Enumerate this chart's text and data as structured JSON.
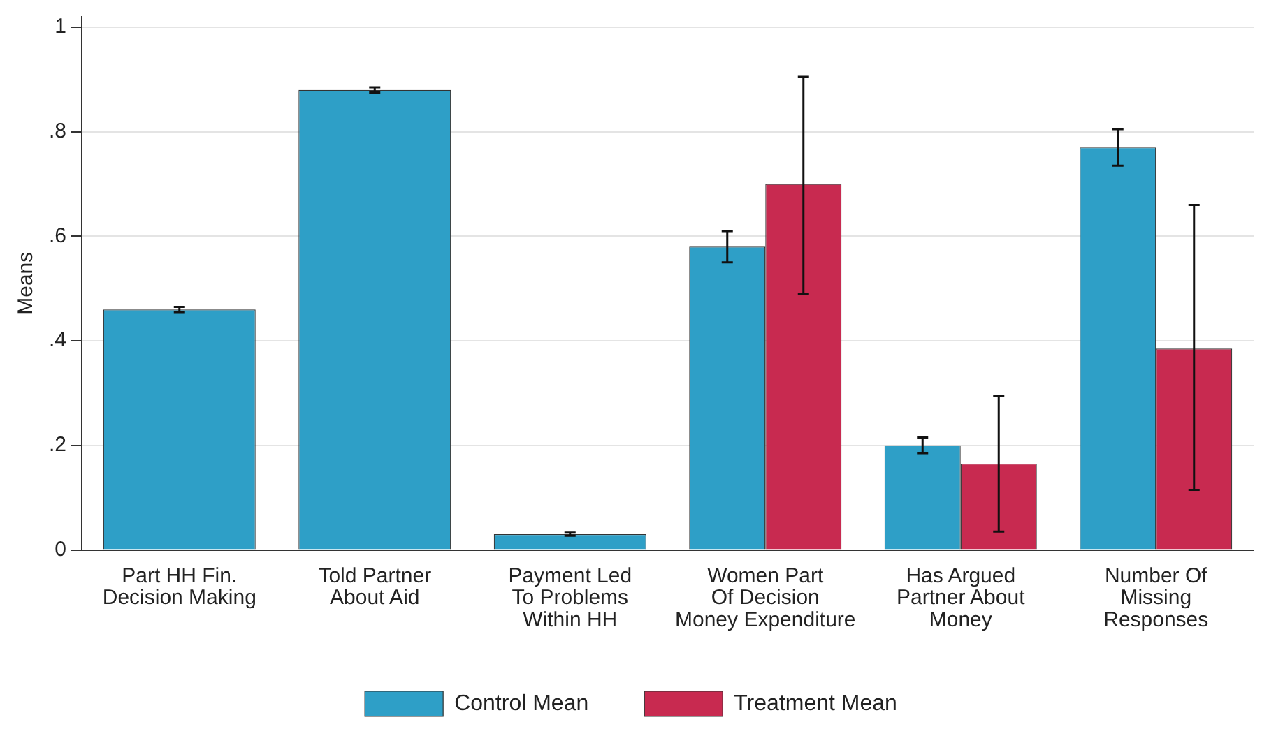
{
  "chart_data": {
    "type": "bar",
    "ylabel": "Means",
    "categories": [
      "Part HH Fin.\nDecision Making",
      "Told Partner\nAbout Aid",
      "Payment Led\nTo Problems\nWithin HH",
      "Women Part\nOf Decision\nMoney Expenditure",
      "Has Argued\nPartner About\nMoney",
      "Number Of\nMissing\nResponses"
    ],
    "series": [
      {
        "name": "Control Mean",
        "color": "#2e9fc7",
        "values": [
          0.46,
          0.88,
          0.03,
          0.58,
          0.2,
          0.77
        ],
        "errors": [
          0.005,
          0.005,
          0.003,
          [
            0.55,
            0.61
          ],
          [
            0.185,
            0.215
          ],
          [
            0.735,
            0.805
          ]
        ]
      },
      {
        "name": "Treatment Mean",
        "color": "#c82a50",
        "values": [
          null,
          null,
          null,
          0.7,
          0.165,
          0.385
        ],
        "errors": [
          null,
          null,
          null,
          [
            0.49,
            0.905
          ],
          [
            0.035,
            0.295
          ],
          [
            0.115,
            0.66
          ]
        ]
      }
    ],
    "ylim": [
      0,
      1.02
    ],
    "yticks": [
      0,
      {
        "value": 0.2,
        "label": ".2"
      },
      {
        "value": 0.4,
        "label": ".4"
      },
      {
        "value": 0.6,
        "label": ".6"
      },
      {
        "value": 0.8,
        "label": ".8"
      },
      1
    ],
    "grid": "y",
    "legend": "bottom"
  }
}
